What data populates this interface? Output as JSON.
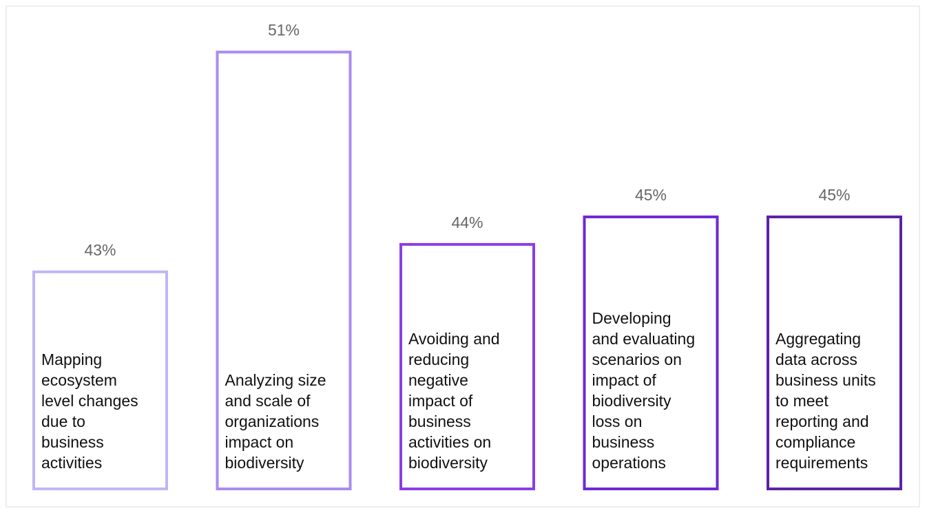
{
  "chart_data": {
    "type": "bar",
    "categories": [
      "Mapping ecosystem level changes due to business activities",
      "Analyzing size and scale of organizations impact on biodiversity",
      "Avoiding and reducing negative impact of business activities on biodiversity",
      "Developing and evaluating scenarios on impact of biodiversity loss on business operations",
      "Aggregating data across business units to meet reporting and compliance requirements"
    ],
    "category_lines": [
      [
        "Mapping",
        "ecosystem",
        "level changes",
        "due to",
        "business",
        "activities"
      ],
      [
        "Analyzing size",
        "and scale of",
        "organizations",
        "impact on",
        "biodiversity"
      ],
      [
        "Avoiding and",
        "reducing",
        "negative",
        "impact of",
        "business",
        "activities on",
        "biodiversity"
      ],
      [
        "Developing",
        "and evaluating",
        "scenarios on",
        "impact of",
        "biodiversity",
        "loss on",
        "business",
        "operations"
      ],
      [
        "Aggregating",
        "data across",
        "business units",
        "to meet",
        "reporting and",
        "compliance",
        "requirements"
      ]
    ],
    "values": [
      43,
      51,
      44,
      45,
      45
    ],
    "value_labels": [
      "43%",
      "51%",
      "44%",
      "45%",
      "45%"
    ],
    "bar_colors": [
      "#c3b5f6",
      "#a98cf0",
      "#8a3ee6",
      "#6f28d4",
      "#5b22a6"
    ],
    "title": "",
    "xlabel": "",
    "ylabel": "",
    "grid": false,
    "legend": "none"
  }
}
